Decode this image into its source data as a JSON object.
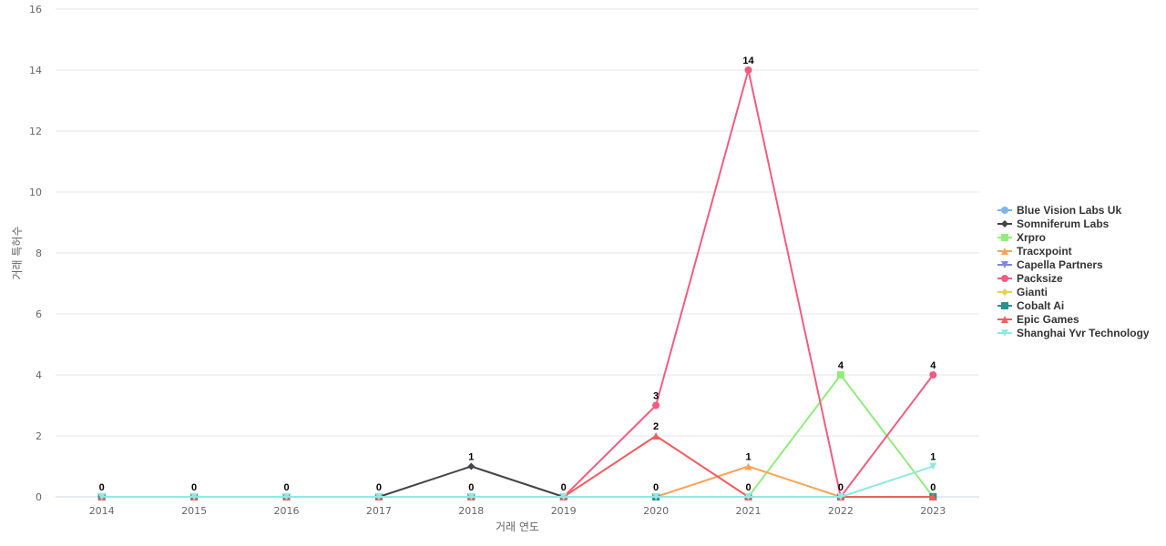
{
  "chart_data": {
    "type": "line",
    "xlabel": "거래 연도",
    "ylabel": "거래 특허수",
    "ylim": [
      0,
      16
    ],
    "y_ticks": [
      0,
      2,
      4,
      6,
      8,
      10,
      12,
      14,
      16
    ],
    "grid": true,
    "legend_position": "right",
    "categories": [
      "2014",
      "2015",
      "2016",
      "2017",
      "2018",
      "2019",
      "2020",
      "2021",
      "2022",
      "2023"
    ],
    "series": [
      {
        "name": "Blue Vision Labs Uk",
        "color": "#7cb5ec",
        "marker": "circle",
        "values": [
          0,
          0,
          0,
          0,
          0,
          0,
          0,
          0,
          0,
          0
        ]
      },
      {
        "name": "Somniferum Labs",
        "color": "#434348",
        "marker": "diamond",
        "values": [
          0,
          0,
          0,
          0,
          1,
          0,
          0,
          0,
          0,
          0
        ]
      },
      {
        "name": "Xrpro",
        "color": "#90ed7d",
        "marker": "square",
        "values": [
          0,
          0,
          0,
          0,
          0,
          0,
          0,
          0,
          4,
          0
        ]
      },
      {
        "name": "Tracxpoint",
        "color": "#f7a35c",
        "marker": "triangle",
        "values": [
          0,
          0,
          0,
          0,
          0,
          0,
          0,
          1,
          0,
          0
        ]
      },
      {
        "name": "Capella Partners",
        "color": "#8085e9",
        "marker": "triangle-down",
        "values": [
          0,
          0,
          0,
          0,
          0,
          0,
          0,
          0,
          0,
          0
        ]
      },
      {
        "name": "Packsize",
        "color": "#f15c80",
        "marker": "circle",
        "values": [
          0,
          0,
          0,
          0,
          0,
          0,
          3,
          14,
          0,
          4
        ]
      },
      {
        "name": "Gianti",
        "color": "#e4d354",
        "marker": "diamond",
        "values": [
          0,
          0,
          0,
          0,
          0,
          0,
          0,
          0,
          0,
          0
        ]
      },
      {
        "name": "Cobalt Ai",
        "color": "#2b908f",
        "marker": "square",
        "values": [
          0,
          0,
          0,
          0,
          0,
          0,
          0,
          0,
          0,
          0
        ]
      },
      {
        "name": "Epic Games",
        "color": "#f45b5b",
        "marker": "triangle",
        "values": [
          0,
          0,
          0,
          0,
          0,
          0,
          2,
          0,
          0,
          0
        ]
      },
      {
        "name": "Shanghai Yvr Technology",
        "color": "#91e8e1",
        "marker": "triangle-down",
        "values": [
          0,
          0,
          0,
          0,
          0,
          0,
          0,
          0,
          0,
          1
        ]
      }
    ],
    "data_labels": [
      {
        "x": "2014",
        "value": 0
      },
      {
        "x": "2015",
        "value": 0
      },
      {
        "x": "2016",
        "value": 0
      },
      {
        "x": "2017",
        "value": 0
      },
      {
        "x": "2018",
        "value": 0
      },
      {
        "x": "2018",
        "value": 1
      },
      {
        "x": "2019",
        "value": 0
      },
      {
        "x": "2020",
        "value": 0
      },
      {
        "x": "2020",
        "value": 2
      },
      {
        "x": "2020",
        "value": 3
      },
      {
        "x": "2021",
        "value": 0
      },
      {
        "x": "2021",
        "value": 1
      },
      {
        "x": "2021",
        "value": 14
      },
      {
        "x": "2022",
        "value": 0
      },
      {
        "x": "2022",
        "value": 4
      },
      {
        "x": "2023",
        "value": 0
      },
      {
        "x": "2023",
        "value": 1
      },
      {
        "x": "2023",
        "value": 4
      }
    ]
  }
}
